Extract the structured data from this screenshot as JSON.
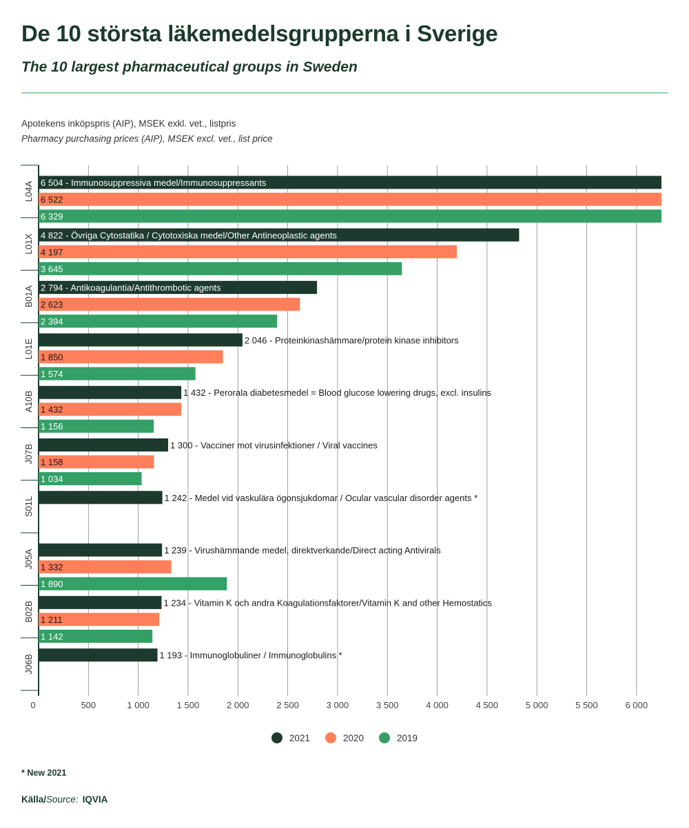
{
  "header": {
    "title": "De 10 största läkemedelsgrupperna i Sverige",
    "subtitle": "The 10 largest pharmaceutical groups in Sweden",
    "unit_sv": "Apotekens inköpspris (AIP), MSEK exkl. vet., listpris",
    "unit_en": "Pharmacy purchasing prices (AIP), MSEK excl. vet., list price"
  },
  "footer": {
    "footnote": "* New 2021",
    "source_label_sv": "Källa/",
    "source_label_en": "Source:",
    "source_value": "IQVIA"
  },
  "colors": {
    "2021": "#1c3a2d",
    "2020": "#ff7f5a",
    "2019": "#34a065",
    "grid": "#888888",
    "rule": "#8fd4ac"
  },
  "chart_data": {
    "type": "bar",
    "orientation": "horizontal",
    "xlim": [
      0,
      6250
    ],
    "x_ticks": [
      "0",
      "500",
      "1 000",
      "1 500",
      "2 000",
      "2 500",
      "3 000",
      "3 500",
      "4 000",
      "4 500",
      "5 000",
      "5 500",
      "6 000"
    ],
    "grid": true,
    "legend_position": "bottom-center",
    "legend": [
      {
        "name": "2021",
        "color": "#1c3a2d"
      },
      {
        "name": "2020",
        "color": "#ff7f5a"
      },
      {
        "name": "2019",
        "color": "#34a065"
      }
    ],
    "categories": [
      {
        "code": "L04A",
        "bars": [
          {
            "year": "2021",
            "value": 6504,
            "label": "6 504 - Immunosuppressiva medel/Immunosuppressants"
          },
          {
            "year": "2020",
            "value": 6522,
            "label": "6 522"
          },
          {
            "year": "2019",
            "value": 6329,
            "label": "6 329"
          }
        ]
      },
      {
        "code": "L01X",
        "bars": [
          {
            "year": "2021",
            "value": 4822,
            "label": "4 822 - Övriga Cytostatika / Cytotoxiska medel/Other Antineoplastic agents"
          },
          {
            "year": "2020",
            "value": 4197,
            "label": "4 197"
          },
          {
            "year": "2019",
            "value": 3645,
            "label": "3 645"
          }
        ]
      },
      {
        "code": "B01A",
        "bars": [
          {
            "year": "2021",
            "value": 2794,
            "label": "2 794 - Antikoagulantia/Antithrombotic agents"
          },
          {
            "year": "2020",
            "value": 2623,
            "label": "2 623"
          },
          {
            "year": "2019",
            "value": 2394,
            "label": "2 394"
          }
        ]
      },
      {
        "code": "L01E",
        "bars": [
          {
            "year": "2021",
            "value": 2046,
            "label": "2 046 - Proteinkinashämmare/protein kinase inhibitors"
          },
          {
            "year": "2020",
            "value": 1850,
            "label": "1 850"
          },
          {
            "year": "2019",
            "value": 1574,
            "label": "1 574"
          }
        ]
      },
      {
        "code": "A10B",
        "bars": [
          {
            "year": "2021",
            "value": 1432,
            "label": "1 432 - Perorala diabetesmedel = Blood glucose lowering drugs, excl. insulins"
          },
          {
            "year": "2020",
            "value": 1432,
            "label": "1 432"
          },
          {
            "year": "2019",
            "value": 1156,
            "label": "1 156"
          }
        ]
      },
      {
        "code": "J07B",
        "bars": [
          {
            "year": "2021",
            "value": 1300,
            "label": "1 300 - Vacciner mot virusinfektioner / Viral vaccines"
          },
          {
            "year": "2020",
            "value": 1158,
            "label": "1 158"
          },
          {
            "year": "2019",
            "value": 1034,
            "label": "1 034"
          }
        ]
      },
      {
        "code": "S01L",
        "bars": [
          {
            "year": "2021",
            "value": 1242,
            "label": "1 242 - Medel vid vaskulära ögonsjukdomar / Ocular vascular disorder agents *"
          }
        ]
      },
      {
        "code": "J05A",
        "bars": [
          {
            "year": "2021",
            "value": 1239,
            "label": "1 239 - Virushämmande medel, direktverkande/Direct acting Antivirals"
          },
          {
            "year": "2020",
            "value": 1332,
            "label": "1 332"
          },
          {
            "year": "2019",
            "value": 1890,
            "label": "1 890"
          }
        ]
      },
      {
        "code": "B02B",
        "bars": [
          {
            "year": "2021",
            "value": 1234,
            "label": "1 234 - Vitamin K och andra Koagulationsfaktorer/Vitamin K and other Hemostatics"
          },
          {
            "year": "2020",
            "value": 1211,
            "label": "1 211"
          },
          {
            "year": "2019",
            "value": 1142,
            "label": "1 142"
          }
        ]
      },
      {
        "code": "J06B",
        "bars": [
          {
            "year": "2021",
            "value": 1193,
            "label": "1 193 - Immunoglobuliner / Immunoglobulins *"
          }
        ]
      }
    ]
  }
}
